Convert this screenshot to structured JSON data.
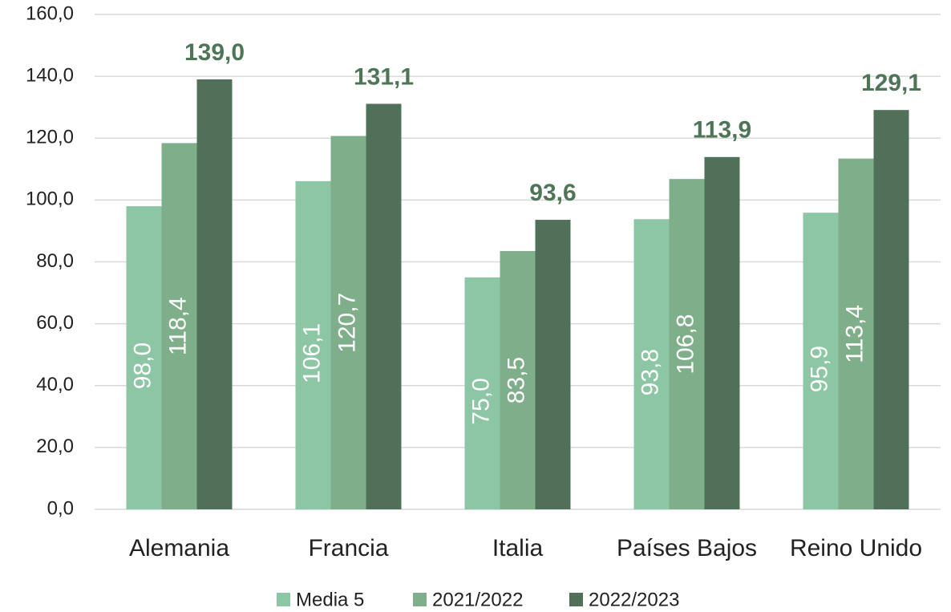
{
  "chart_data": {
    "type": "bar",
    "categories": [
      "Alemania",
      "Francia",
      "Italia",
      "Países Bajos",
      "Reino Unido"
    ],
    "series": [
      {
        "name": "Media 5",
        "color": "#8cc6a4",
        "values": [
          98.0,
          106.1,
          75.0,
          93.8,
          95.9
        ],
        "value_labels": [
          "98,0",
          "106,1",
          "75,0",
          "93,8",
          "95,9"
        ]
      },
      {
        "name": "2021/2022",
        "color": "#7faf8a",
        "values": [
          118.4,
          120.7,
          83.5,
          106.8,
          113.4
        ],
        "value_labels": [
          "118,4",
          "120,7",
          "83,5",
          "106,8",
          "113,4"
        ]
      },
      {
        "name": "2022/2023",
        "color": "#51705a",
        "values": [
          139.0,
          131.1,
          93.6,
          113.9,
          129.1
        ],
        "value_labels": [
          "139,0",
          "131,1",
          "93,6",
          "113,9",
          "129,1"
        ]
      }
    ],
    "ylim": [
      0,
      160
    ],
    "yticks": [
      {
        "value": 0,
        "label": "0,0"
      },
      {
        "value": 20,
        "label": "20,0"
      },
      {
        "value": 40,
        "label": "40,0"
      },
      {
        "value": 60,
        "label": "60,0"
      },
      {
        "value": 80,
        "label": "80,0"
      },
      {
        "value": 100,
        "label": "100,0"
      },
      {
        "value": 120,
        "label": "120,0"
      },
      {
        "value": 140,
        "label": "140,0"
      },
      {
        "value": 160,
        "label": "160,0"
      }
    ],
    "grid": true,
    "legend": "bottom"
  }
}
